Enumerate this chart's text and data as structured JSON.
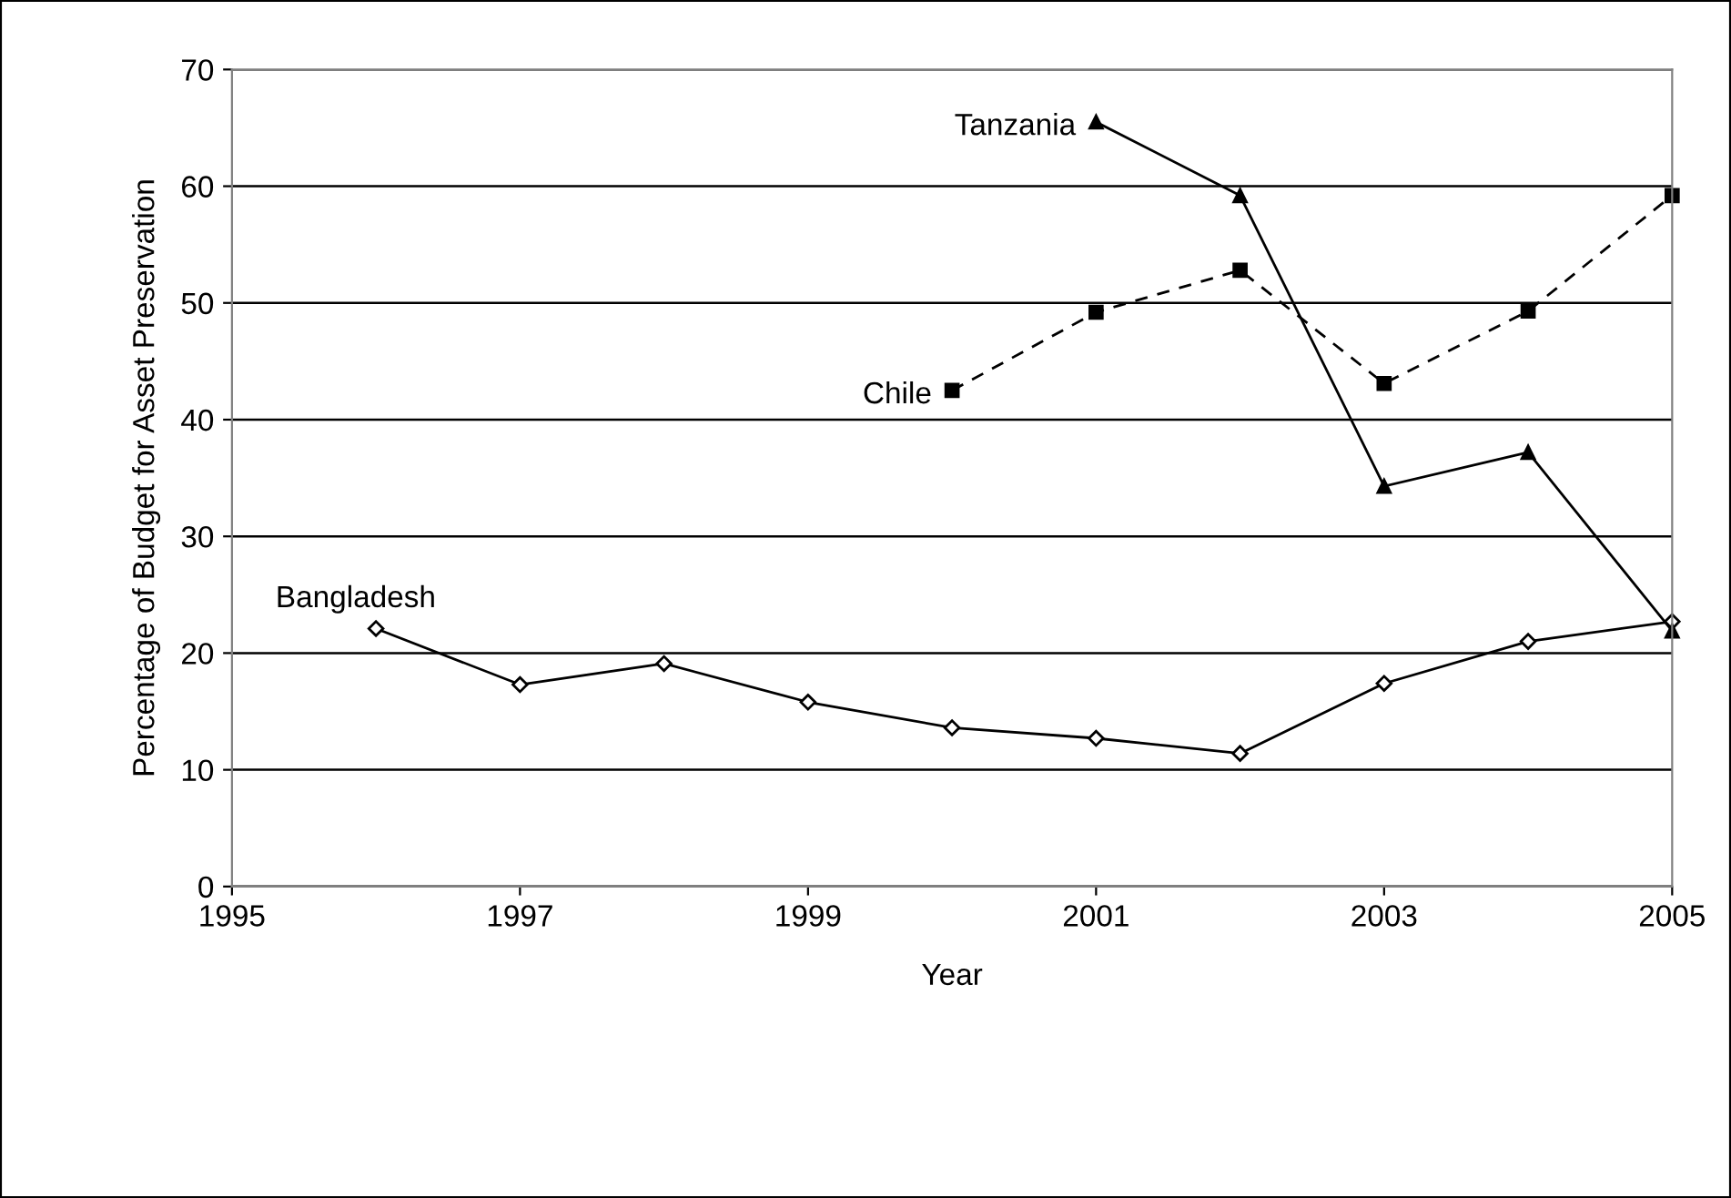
{
  "chart_data": {
    "type": "line",
    "xlabel": "Year",
    "ylabel": "Percentage of Budget for Asset Preservation",
    "xlim": [
      1995,
      2005
    ],
    "xticks": [
      1995,
      1997,
      1999,
      2001,
      2003,
      2005
    ],
    "ylim": [
      0,
      70
    ],
    "yticks": [
      0,
      10,
      20,
      30,
      40,
      50,
      60,
      70
    ],
    "grid": "y",
    "legend": false,
    "series": [
      {
        "name": "Bangladesh",
        "color": "#000000",
        "marker": "diamond",
        "line_style": "solid",
        "x": [
          1996,
          1997,
          1998,
          1999,
          2000,
          2001,
          2002,
          2003,
          2004,
          2005
        ],
        "values": [
          22.1,
          17.3,
          19.1,
          15.8,
          13.6,
          12.7,
          11.4,
          17.4,
          21.0,
          22.7
        ]
      },
      {
        "name": "Chile",
        "color": "#000000",
        "marker": "square",
        "line_style": "dashed",
        "x": [
          2000,
          2001,
          2002,
          2003,
          2004,
          2005
        ],
        "values": [
          42.5,
          49.2,
          52.8,
          43.1,
          49.3,
          59.2
        ]
      },
      {
        "name": "Tanzania",
        "color": "#000000",
        "marker": "triangle",
        "line_style": "solid",
        "x": [
          2001,
          2002,
          2003,
          2004,
          2005
        ],
        "values": [
          65.5,
          59.2,
          34.3,
          37.2,
          21.9
        ]
      }
    ]
  }
}
